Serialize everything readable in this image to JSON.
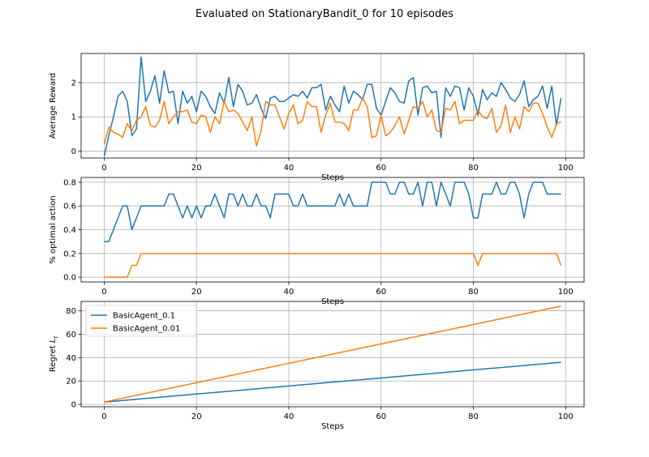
{
  "figure": {
    "title": "Evaluated on StationaryBandit_0 for 10 episodes"
  },
  "legend_labels": [
    "BasicAgent_0.1",
    "BasicAgent_0.01"
  ],
  "chart_data": [
    {
      "type": "line",
      "ylabel": "Average Reward",
      "xlabel": "Steps",
      "xlim": [
        -5,
        104
      ],
      "ylim": [
        -0.2,
        2.85
      ],
      "xticks": [
        0,
        20,
        40,
        60,
        80,
        100
      ],
      "yticks": [
        0,
        1,
        2
      ],
      "grid": true,
      "series": [
        {
          "name": "BasicAgent_0.1",
          "color": "#1f77b4",
          "values": [
            -0.15,
            0.45,
            1.0,
            1.6,
            1.75,
            1.45,
            0.45,
            0.65,
            2.75,
            1.45,
            1.75,
            2.2,
            1.4,
            2.35,
            1.7,
            1.75,
            0.8,
            1.75,
            1.4,
            1.6,
            1.15,
            1.75,
            1.6,
            1.3,
            1.1,
            1.7,
            1.4,
            2.15,
            1.3,
            1.95,
            1.75,
            1.35,
            1.4,
            1.65,
            1.25,
            0.95,
            1.55,
            1.6,
            1.45,
            1.45,
            1.55,
            1.65,
            1.6,
            1.75,
            1.55,
            1.85,
            1.85,
            1.95,
            1.2,
            1.6,
            1.35,
            1.15,
            1.9,
            1.4,
            1.75,
            1.65,
            1.5,
            1.95,
            1.95,
            1.25,
            1.05,
            1.45,
            1.85,
            1.7,
            1.45,
            1.4,
            2.05,
            2.15,
            1.05,
            1.85,
            1.9,
            1.7,
            1.75,
            0.4,
            1.85,
            1.6,
            1.9,
            1.85,
            1.2,
            1.85,
            1.6,
            1.05,
            1.8,
            1.5,
            1.7,
            1.6,
            2.0,
            1.8,
            1.55,
            1.45,
            1.65,
            2.05,
            1.3,
            1.5,
            1.6,
            1.9,
            1.25,
            1.9,
            0.75,
            1.55
          ]
        },
        {
          "name": "BasicAgent_0.01",
          "color": "#ff7f0e",
          "values": [
            0.2,
            0.7,
            0.55,
            0.5,
            0.4,
            0.8,
            0.6,
            0.9,
            1.0,
            1.3,
            0.75,
            0.7,
            0.9,
            1.45,
            0.8,
            1.0,
            1.15,
            1.15,
            1.2,
            0.85,
            0.8,
            1.05,
            1.0,
            0.55,
            1.0,
            0.8,
            1.45,
            1.15,
            1.2,
            1.1,
            0.85,
            0.6,
            1.0,
            0.15,
            0.6,
            1.45,
            1.35,
            1.35,
            1.0,
            0.65,
            1.1,
            1.35,
            0.8,
            0.9,
            1.45,
            1.3,
            1.3,
            0.55,
            1.05,
            1.4,
            0.85,
            0.85,
            0.8,
            0.6,
            1.2,
            1.2,
            1.55,
            1.3,
            0.4,
            0.45,
            1.05,
            0.45,
            0.55,
            0.75,
            1.0,
            0.5,
            0.9,
            1.3,
            1.25,
            1.45,
            1.0,
            1.2,
            0.6,
            0.55,
            1.25,
            1.2,
            1.45,
            0.8,
            0.9,
            0.9,
            0.9,
            1.2,
            1.0,
            0.95,
            1.25,
            0.55,
            0.75,
            1.35,
            0.55,
            1.0,
            0.65,
            1.3,
            1.15,
            1.4,
            1.4,
            1.1,
            0.7,
            0.4,
            0.8,
            0.85
          ]
        }
      ]
    },
    {
      "type": "line",
      "ylabel": "% optimal action",
      "xlabel": "Steps",
      "xlim": [
        -5,
        104
      ],
      "ylim": [
        -0.04,
        0.84
      ],
      "xticks": [
        0,
        20,
        40,
        60,
        80,
        100
      ],
      "yticks": [
        0.0,
        0.2,
        0.4,
        0.6,
        0.8
      ],
      "ytick_labels": [
        "0.0",
        "0.2",
        "0.4",
        "0.6",
        "0.8"
      ],
      "grid": true,
      "series": [
        {
          "name": "BasicAgent_0.1",
          "color": "#1f77b4",
          "values": [
            0.3,
            0.3,
            0.4,
            0.5,
            0.6,
            0.6,
            0.4,
            0.5,
            0.6,
            0.6,
            0.6,
            0.6,
            0.6,
            0.6,
            0.7,
            0.7,
            0.6,
            0.5,
            0.6,
            0.5,
            0.6,
            0.5,
            0.6,
            0.6,
            0.7,
            0.6,
            0.5,
            0.7,
            0.7,
            0.6,
            0.7,
            0.6,
            0.6,
            0.7,
            0.6,
            0.6,
            0.5,
            0.7,
            0.7,
            0.7,
            0.7,
            0.6,
            0.6,
            0.7,
            0.6,
            0.6,
            0.6,
            0.6,
            0.6,
            0.6,
            0.6,
            0.7,
            0.6,
            0.7,
            0.6,
            0.6,
            0.6,
            0.6,
            0.8,
            0.8,
            0.8,
            0.8,
            0.7,
            0.7,
            0.8,
            0.8,
            0.7,
            0.7,
            0.8,
            0.6,
            0.8,
            0.8,
            0.6,
            0.8,
            0.7,
            0.6,
            0.8,
            0.8,
            0.8,
            0.7,
            0.5,
            0.5,
            0.7,
            0.7,
            0.7,
            0.8,
            0.7,
            0.7,
            0.8,
            0.8,
            0.7,
            0.5,
            0.7,
            0.8,
            0.8,
            0.8,
            0.7,
            0.7,
            0.7,
            0.7
          ]
        },
        {
          "name": "BasicAgent_0.01",
          "color": "#ff7f0e",
          "values": [
            0.0,
            0.0,
            0.0,
            0.0,
            0.0,
            0.0,
            0.1,
            0.1,
            0.2,
            0.2,
            0.2,
            0.2,
            0.2,
            0.2,
            0.2,
            0.2,
            0.2,
            0.2,
            0.2,
            0.2,
            0.2,
            0.2,
            0.2,
            0.2,
            0.2,
            0.2,
            0.2,
            0.2,
            0.2,
            0.2,
            0.2,
            0.2,
            0.2,
            0.2,
            0.2,
            0.2,
            0.2,
            0.2,
            0.2,
            0.2,
            0.2,
            0.2,
            0.2,
            0.2,
            0.2,
            0.2,
            0.2,
            0.2,
            0.2,
            0.2,
            0.2,
            0.2,
            0.2,
            0.2,
            0.2,
            0.2,
            0.2,
            0.2,
            0.2,
            0.2,
            0.2,
            0.2,
            0.2,
            0.2,
            0.2,
            0.2,
            0.2,
            0.2,
            0.2,
            0.2,
            0.2,
            0.2,
            0.2,
            0.2,
            0.2,
            0.2,
            0.2,
            0.2,
            0.2,
            0.2,
            0.2,
            0.1,
            0.2,
            0.2,
            0.2,
            0.2,
            0.2,
            0.2,
            0.2,
            0.2,
            0.2,
            0.2,
            0.2,
            0.2,
            0.2,
            0.2,
            0.2,
            0.2,
            0.2,
            0.1
          ]
        }
      ]
    },
    {
      "type": "line",
      "ylabel": "Regret L_t",
      "xlabel": "Steps",
      "xlim": [
        -5,
        104
      ],
      "ylim": [
        -2,
        88
      ],
      "xticks": [
        0,
        20,
        40,
        60,
        80,
        100
      ],
      "yticks": [
        0,
        20,
        40,
        60,
        80
      ],
      "grid": true,
      "legend": "upper left",
      "series": [
        {
          "name": "BasicAgent_0.1",
          "color": "#1f77b4",
          "endpoints": [
            [
              0,
              2
            ],
            [
              99,
              36
            ]
          ]
        },
        {
          "name": "BasicAgent_0.01",
          "color": "#ff7f0e",
          "endpoints": [
            [
              0,
              2
            ],
            [
              99,
              84
            ]
          ]
        }
      ]
    }
  ]
}
